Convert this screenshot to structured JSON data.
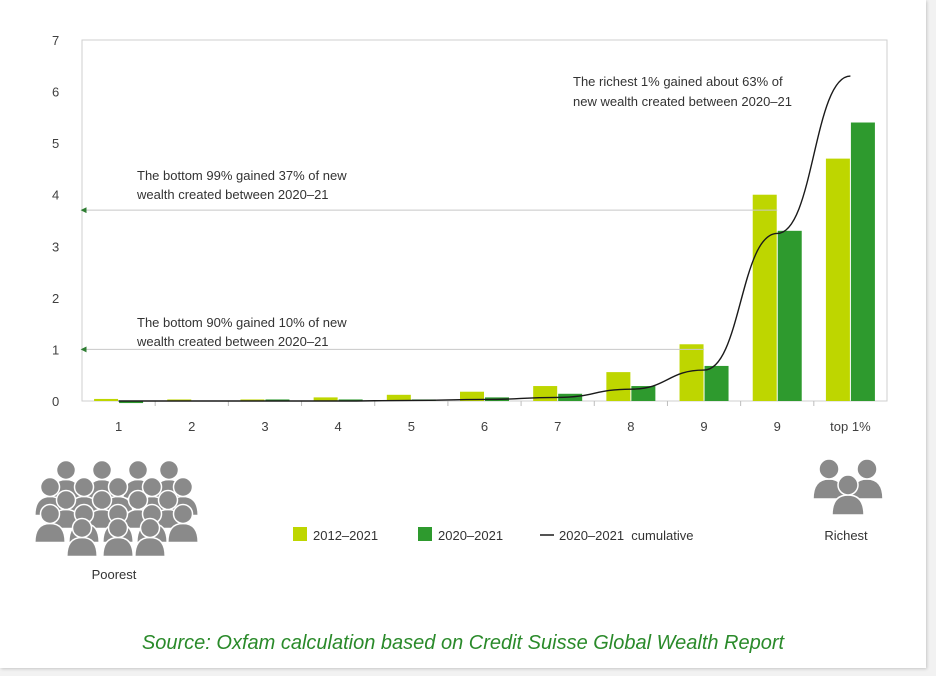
{
  "chart_data": {
    "type": "bar",
    "categories": [
      "1",
      "2",
      "3",
      "4",
      "5",
      "6",
      "7",
      "8",
      "9",
      "9",
      "top 1%"
    ],
    "series": [
      {
        "name": "2012–2021",
        "values": [
          0.04,
          0.03,
          0.03,
          0.07,
          0.12,
          0.18,
          0.29,
          0.56,
          1.1,
          4.0,
          4.7
        ]
      },
      {
        "name": "2020–2021",
        "values": [
          -0.04,
          0.01,
          0.03,
          0.03,
          0.03,
          0.07,
          0.14,
          0.29,
          0.68,
          3.3,
          5.4
        ]
      }
    ],
    "line": {
      "name": "2020–2021  cumulative",
      "values": [
        0.0,
        0.0,
        0.0,
        0.0,
        0.01,
        0.03,
        0.07,
        0.23,
        0.6,
        3.25,
        6.3
      ]
    },
    "colors": {
      "2012–2021": "#bed600",
      "2020–2021": "#2e9a2e",
      "cumulative": "#1a1a1a"
    },
    "ylim": [
      0,
      7
    ],
    "yticks": [
      "0",
      "1",
      "2",
      "3",
      "4",
      "5",
      "6",
      "7"
    ],
    "grid": false,
    "legend_position": "bottom",
    "annotations": {
      "top1": {
        "line1": "The richest 1% gained about 63% of",
        "line2": "new wealth created between 2020–21"
      },
      "bottom99": {
        "line1": "The bottom 99% gained 37% of new",
        "line2": "wealth created between 2020–21",
        "level": 3.7
      },
      "bottom90": {
        "line1": "The bottom 90% gained 10% of new",
        "line2": "wealth created between 2020–21",
        "level": 1.0
      }
    }
  },
  "people": {
    "poorest_label": "Poorest",
    "richest_label": "Richest"
  },
  "source": "Source: Oxfam calculation based on Credit Suisse Global Wealth Report"
}
